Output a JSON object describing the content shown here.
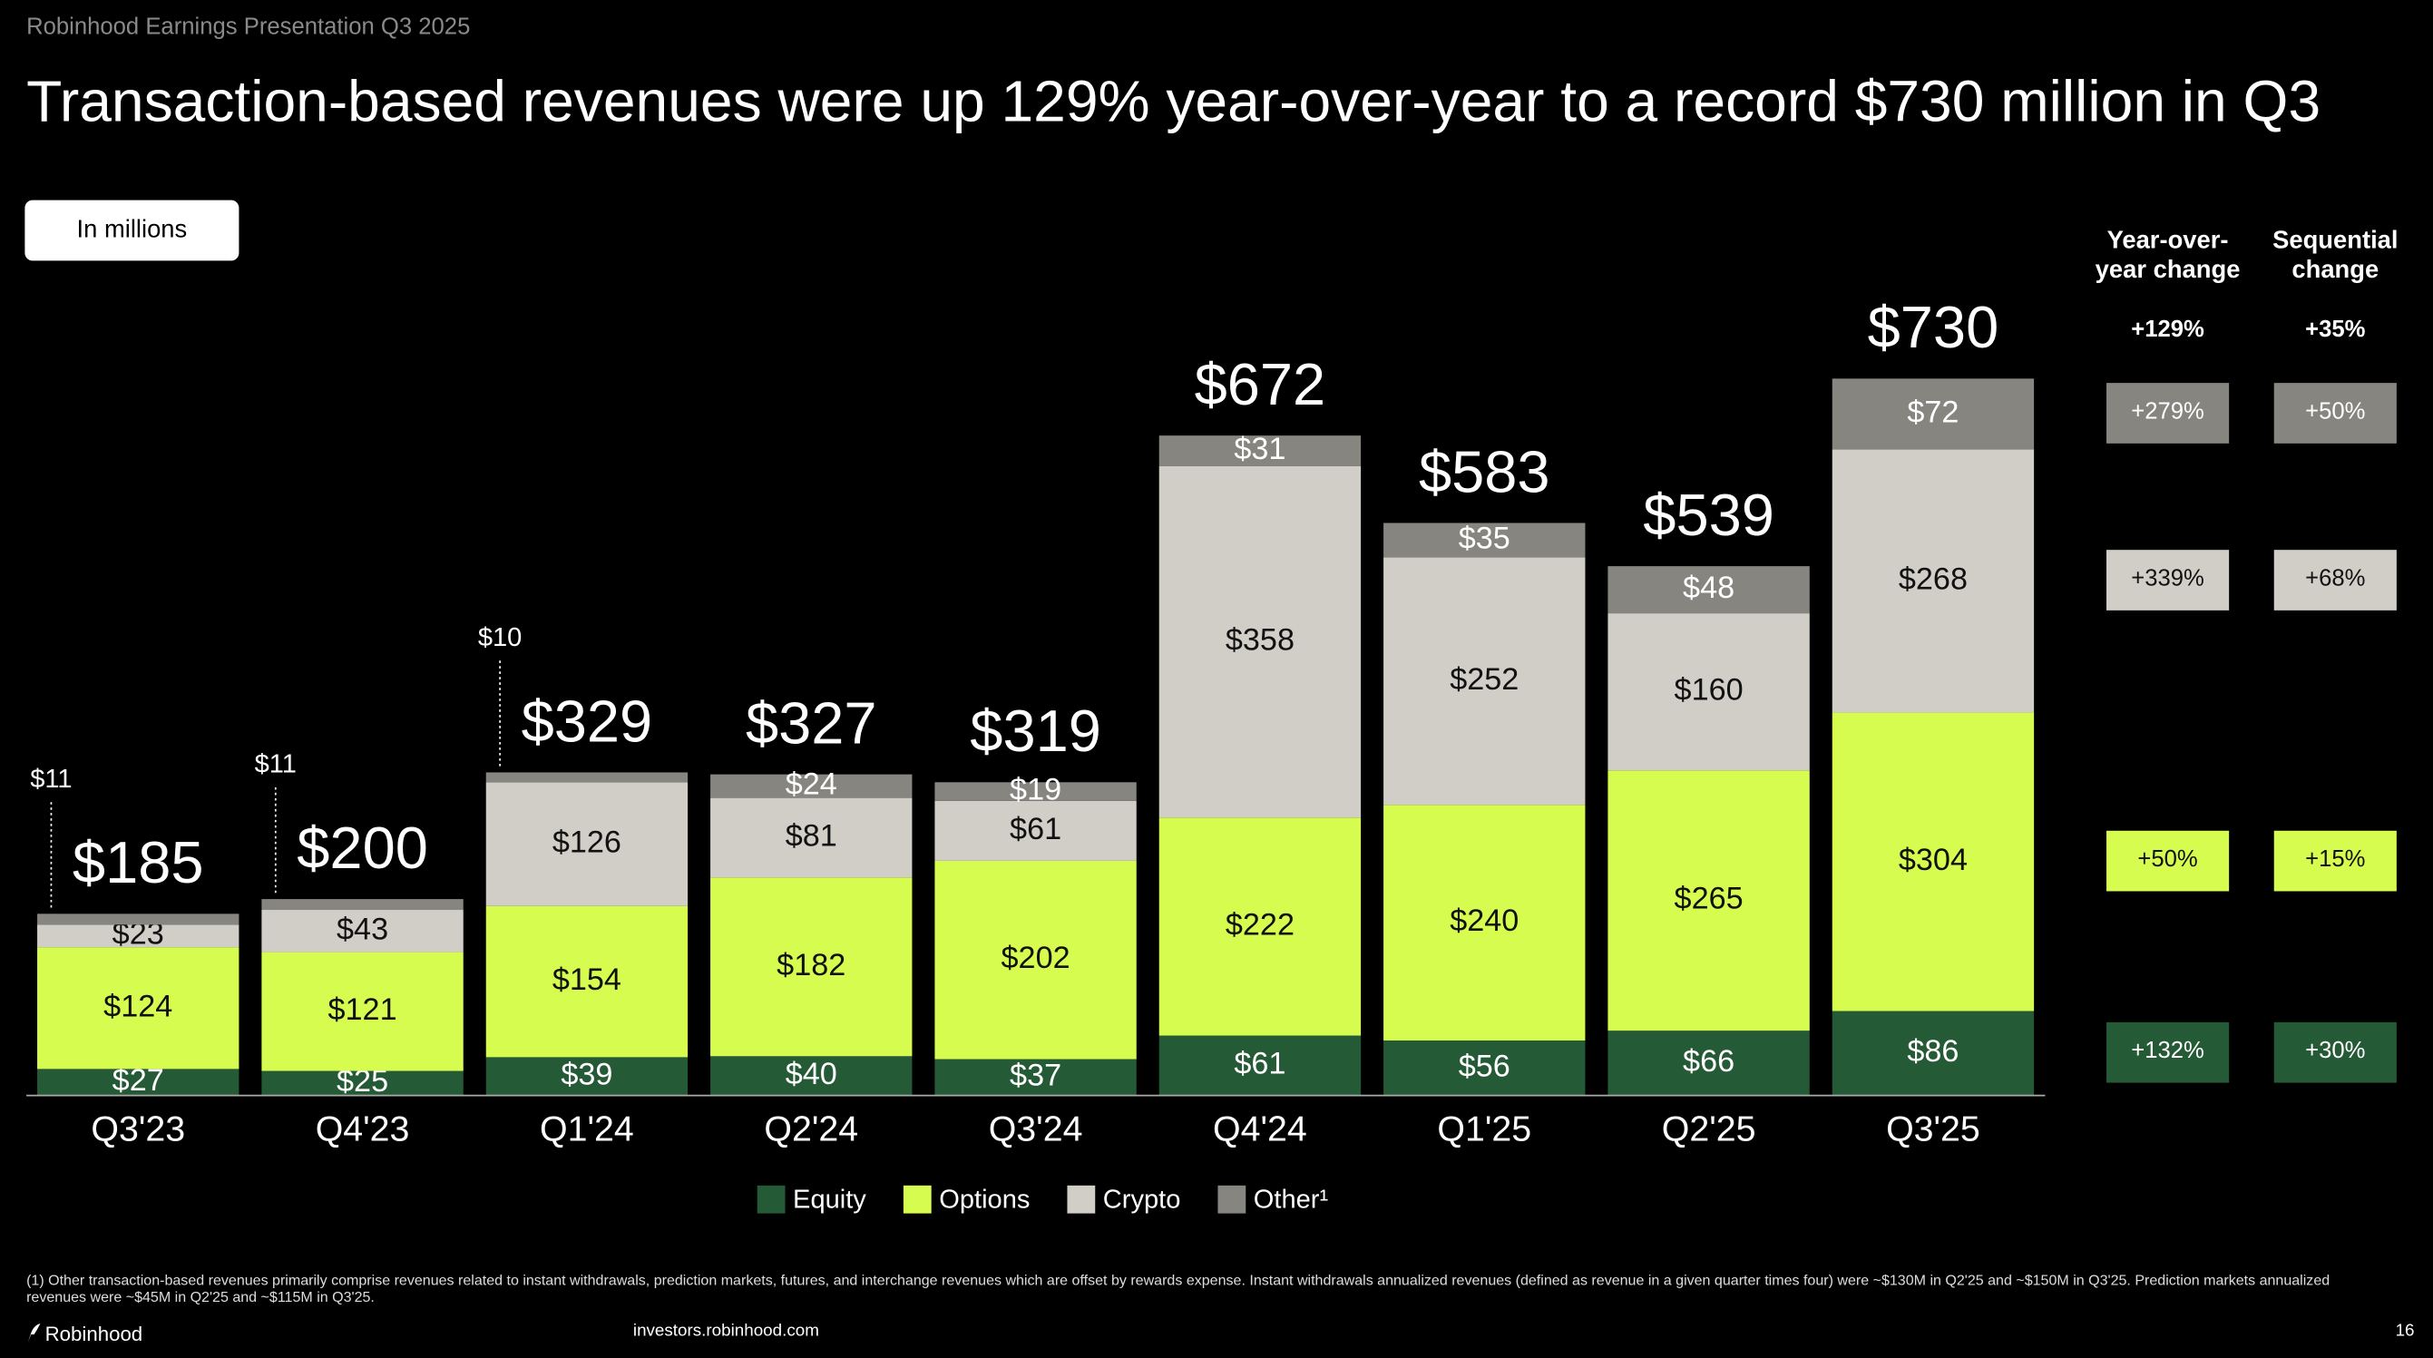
{
  "header": {
    "source": "Robinhood Earnings Presentation Q3 2025",
    "title": "Transaction-based revenues were up 129% year-over-year to a record $730 million in Q3",
    "unit_note": "In millions"
  },
  "chart_data": {
    "type": "stacked-bar",
    "categories": [
      "Q3'23",
      "Q4'23",
      "Q1'24",
      "Q2'24",
      "Q3'24",
      "Q4'24",
      "Q1'25",
      "Q2'25",
      "Q3'25"
    ],
    "series": [
      {
        "name": "Equity",
        "color": "#245a36",
        "values": [
          27,
          25,
          39,
          40,
          37,
          61,
          56,
          66,
          86
        ],
        "value_labels": [
          "$27",
          "$25",
          "$39",
          "$40",
          "$37",
          "$61",
          "$56",
          "$66",
          "$86"
        ]
      },
      {
        "name": "Options",
        "color": "#d6fc50",
        "values": [
          124,
          121,
          154,
          182,
          202,
          222,
          240,
          265,
          304
        ],
        "value_labels": [
          "$124",
          "$121",
          "$154",
          "$182",
          "$202",
          "$222",
          "$240",
          "$265",
          "$304"
        ]
      },
      {
        "name": "Crypto",
        "color": "#d1cec7",
        "values": [
          23,
          43,
          126,
          81,
          61,
          358,
          252,
          160,
          268
        ],
        "value_labels": [
          "$23",
          "$43",
          "$126",
          "$81",
          "$61",
          "$358",
          "$252",
          "$160",
          "$268"
        ]
      },
      {
        "name": "Other¹",
        "color": "#878580",
        "values": [
          11,
          11,
          10,
          24,
          19,
          31,
          35,
          48,
          72
        ],
        "value_labels": [
          "$11",
          "$11",
          "$10",
          "$24",
          "$19",
          "$31",
          "$35",
          "$48",
          "$72"
        ]
      }
    ],
    "totals": [
      185,
      200,
      329,
      327,
      319,
      672,
      583,
      539,
      730
    ],
    "total_labels": [
      "$185",
      "$200",
      "$329",
      "$327",
      "$319",
      "$672",
      "$583",
      "$539",
      "$730"
    ]
  },
  "change_table": {
    "columns": [
      "Year-over-year change",
      "Sequential change"
    ],
    "total": [
      "+129%",
      "+35%"
    ],
    "rows": [
      [
        "+132%",
        "+30%"
      ],
      [
        "+50%",
        "+15%"
      ],
      [
        "+339%",
        "+68%"
      ],
      [
        "+279%",
        "+50%"
      ]
    ]
  },
  "footnote": "(1) Other transaction-based revenues primarily comprise revenues related to instant withdrawals, prediction markets, futures, and interchange revenues which are offset by rewards expense. Instant withdrawals annualized revenues (defined as revenue in a given quarter times four) were ~$130M in Q2'25 and ~$150M in Q3'25. Prediction markets annualized revenues were ~$45M in Q2'25 and ~$115M in Q3'25.",
  "footer": {
    "brand": "Robinhood",
    "url": "investors.robinhood.com",
    "page": "16"
  }
}
